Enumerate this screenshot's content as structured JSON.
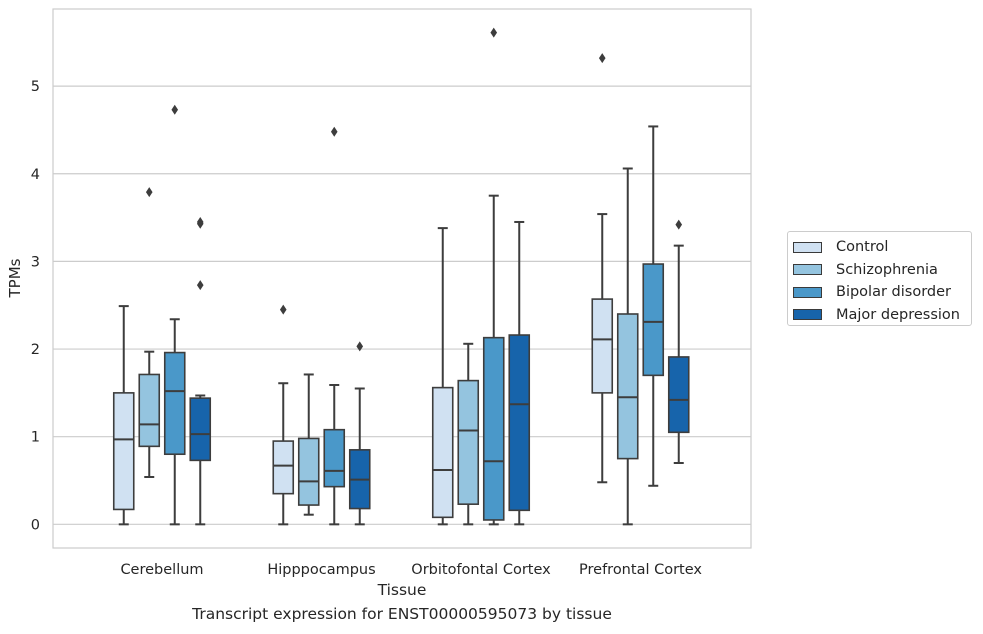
{
  "chart_data": {
    "type": "box",
    "title": "",
    "xlabel": "Tissue",
    "ylabel": "TPMs",
    "caption": "Transcript expression for ENST00000595073 by tissue",
    "ylim": [
      -0.27,
      5.88
    ],
    "yticks": [
      0,
      1,
      2,
      3,
      4,
      5
    ],
    "grid": true,
    "legend_position": "right",
    "categories": [
      "Cerebellum",
      "Hipppocampus",
      "Orbitofontal Cortex",
      "Prefrontal Cortex"
    ],
    "series": [
      {
        "name": "Control",
        "color": "#d0e1f2",
        "boxes": [
          {
            "whisker_low": 0.0,
            "q1": 0.17,
            "median": 0.97,
            "q3": 1.5,
            "whisker_high": 2.49,
            "outliers": []
          },
          {
            "whisker_low": 0.0,
            "q1": 0.35,
            "median": 0.67,
            "q3": 0.95,
            "whisker_high": 1.61,
            "outliers": [
              2.45
            ]
          },
          {
            "whisker_low": 0.0,
            "q1": 0.08,
            "median": 0.62,
            "q3": 1.56,
            "whisker_high": 3.38,
            "outliers": []
          },
          {
            "whisker_low": 0.48,
            "q1": 1.5,
            "median": 2.11,
            "q3": 2.57,
            "whisker_high": 3.54,
            "outliers": [
              5.32
            ]
          }
        ]
      },
      {
        "name": "Schizophrenia",
        "color": "#94c4df",
        "boxes": [
          {
            "whisker_low": 0.54,
            "q1": 0.89,
            "median": 1.14,
            "q3": 1.71,
            "whisker_high": 1.97,
            "outliers": [
              3.79
            ]
          },
          {
            "whisker_low": 0.11,
            "q1": 0.22,
            "median": 0.49,
            "q3": 0.98,
            "whisker_high": 1.71,
            "outliers": []
          },
          {
            "whisker_low": 0.0,
            "q1": 0.23,
            "median": 1.07,
            "q3": 1.64,
            "whisker_high": 2.06,
            "outliers": []
          },
          {
            "whisker_low": 0.0,
            "q1": 0.75,
            "median": 1.45,
            "q3": 2.4,
            "whisker_high": 4.06,
            "outliers": []
          }
        ]
      },
      {
        "name": "Bipolar disorder",
        "color": "#4a98c9",
        "boxes": [
          {
            "whisker_low": 0.0,
            "q1": 0.8,
            "median": 1.52,
            "q3": 1.96,
            "whisker_high": 2.34,
            "outliers": [
              4.73
            ]
          },
          {
            "whisker_low": 0.0,
            "q1": 0.43,
            "median": 0.61,
            "q3": 1.08,
            "whisker_high": 1.59,
            "outliers": [
              4.48
            ]
          },
          {
            "whisker_low": 0.0,
            "q1": 0.05,
            "median": 0.72,
            "q3": 2.13,
            "whisker_high": 3.75,
            "outliers": [
              5.61
            ]
          },
          {
            "whisker_low": 0.44,
            "q1": 1.7,
            "median": 2.31,
            "q3": 2.97,
            "whisker_high": 4.54,
            "outliers": []
          }
        ]
      },
      {
        "name": "Major depression",
        "color": "#1764ab",
        "boxes": [
          {
            "whisker_low": 0.0,
            "q1": 0.73,
            "median": 1.03,
            "q3": 1.44,
            "whisker_high": 1.47,
            "outliers": [
              2.73,
              3.43,
              3.45
            ]
          },
          {
            "whisker_low": 0.0,
            "q1": 0.18,
            "median": 0.51,
            "q3": 0.85,
            "whisker_high": 1.55,
            "outliers": [
              2.03
            ]
          },
          {
            "whisker_low": 0.0,
            "q1": 0.16,
            "median": 1.37,
            "q3": 2.16,
            "whisker_high": 3.45,
            "outliers": []
          },
          {
            "whisker_low": 0.7,
            "q1": 1.05,
            "median": 1.42,
            "q3": 1.91,
            "whisker_high": 3.18,
            "outliers": [
              3.42
            ]
          }
        ]
      }
    ]
  }
}
